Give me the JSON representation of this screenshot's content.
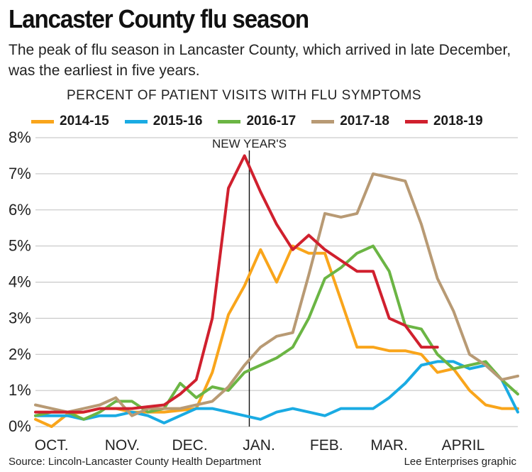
{
  "title": "Lancaster County flu season",
  "subtitle": "The peak of flu season in Lancaster County, which arrived in late December, was the earliest in five years.",
  "source": "Source: Lincoln-Lancaster County Health Department",
  "credit": "Lee Enterprises graphic",
  "chart_data": {
    "type": "line",
    "ylabel": "PERCENT OF PATIENT VISITS WITH FLU SYMPTOMS",
    "ylim": [
      0,
      8
    ],
    "yticks": [
      {
        "value": 0,
        "label": "0%"
      },
      {
        "value": 1,
        "label": "1%"
      },
      {
        "value": 2,
        "label": "2%"
      },
      {
        "value": 3,
        "label": "3%"
      },
      {
        "value": 4,
        "label": "4%"
      },
      {
        "value": 5,
        "label": "5%"
      },
      {
        "value": 6,
        "label": "6%"
      },
      {
        "value": 7,
        "label": "7%"
      },
      {
        "value": 8,
        "label": "8%"
      }
    ],
    "xlim": [
      0,
      30
    ],
    "xticks": [
      {
        "value": 1,
        "label": "OCT."
      },
      {
        "value": 5.4,
        "label": "NOV."
      },
      {
        "value": 9.6,
        "label": "DEC."
      },
      {
        "value": 13.9,
        "label": "JAN."
      },
      {
        "value": 18.1,
        "label": "FEB."
      },
      {
        "value": 22,
        "label": "MAR."
      },
      {
        "value": 26.6,
        "label": "APRIL"
      }
    ],
    "grid": true,
    "legend_position": "top",
    "annotation": {
      "label": "NEW YEAR'S",
      "x": 13.3
    },
    "series": [
      {
        "name": "2014-15",
        "color": "#f9a51b",
        "x": [
          0,
          1,
          2,
          3,
          4,
          5,
          6,
          7,
          8,
          9,
          10,
          11,
          12,
          13,
          14,
          15,
          16,
          17,
          18,
          19,
          20,
          21,
          22,
          23,
          24,
          25,
          26,
          27,
          28,
          29,
          30
        ],
        "y": [
          0.2,
          0,
          0.35,
          0.4,
          0.5,
          0.5,
          0.4,
          0.4,
          0.4,
          0.45,
          0.5,
          1.5,
          3.1,
          3.9,
          4.9,
          4,
          5,
          4.8,
          4.8,
          3.5,
          2.2,
          2.2,
          2.1,
          2.1,
          2,
          1.5,
          1.6,
          1,
          0.6,
          0.5,
          0.5
        ]
      },
      {
        "name": "2015-16",
        "color": "#1aabe3",
        "x": [
          0,
          1,
          2,
          3,
          4,
          5,
          6,
          7,
          8,
          9,
          10,
          11,
          12,
          13,
          14,
          15,
          16,
          17,
          18,
          19,
          20,
          21,
          22,
          23,
          24,
          25,
          26,
          27,
          28,
          29,
          30
        ],
        "y": [
          0.3,
          0.3,
          0.3,
          0.2,
          0.3,
          0.3,
          0.4,
          0.3,
          0.1,
          0.3,
          0.5,
          0.5,
          0.4,
          0.3,
          0.2,
          0.4,
          0.5,
          0.4,
          0.3,
          0.5,
          0.5,
          0.5,
          0.8,
          1.2,
          1.7,
          1.8,
          1.8,
          1.6,
          1.7,
          1.3,
          0.4
        ]
      },
      {
        "name": "2016-17",
        "color": "#6bb544",
        "x": [
          0,
          1,
          2,
          3,
          4,
          5,
          6,
          7,
          8,
          9,
          10,
          11,
          12,
          13,
          14,
          15,
          16,
          17,
          18,
          19,
          20,
          21,
          22,
          23,
          24,
          25,
          26,
          27,
          28,
          29,
          30
        ],
        "y": [
          0.3,
          0.4,
          0.4,
          0.2,
          0.4,
          0.7,
          0.7,
          0.4,
          0.5,
          1.2,
          0.8,
          1.1,
          1,
          1.5,
          1.7,
          1.9,
          2.2,
          3,
          4.1,
          4.4,
          4.8,
          5,
          4.3,
          2.8,
          2.7,
          2,
          1.6,
          1.7,
          1.8,
          1.3,
          0.9
        ]
      },
      {
        "name": "2017-18",
        "color": "#b89a74",
        "x": [
          0,
          1,
          2,
          3,
          4,
          5,
          6,
          7,
          8,
          9,
          10,
          11,
          12,
          13,
          14,
          15,
          16,
          17,
          18,
          19,
          20,
          21,
          22,
          23,
          24,
          25,
          26,
          27,
          28,
          29,
          30
        ],
        "y": [
          0.6,
          0.5,
          0.4,
          0.5,
          0.6,
          0.8,
          0.3,
          0.5,
          0.5,
          0.5,
          0.6,
          0.7,
          1.1,
          1.7,
          2.2,
          2.5,
          2.6,
          4.2,
          5.9,
          5.8,
          5.9,
          7,
          6.9,
          6.8,
          5.6,
          4.1,
          3.2,
          2,
          1.7,
          1.3,
          1.4
        ]
      },
      {
        "name": "2018-19",
        "color": "#d0202e",
        "x": [
          0,
          1,
          2,
          3,
          4,
          5,
          6,
          7,
          8,
          9,
          10,
          11,
          12,
          13,
          14,
          15,
          16,
          17,
          18,
          19,
          20,
          21,
          22,
          23,
          24,
          25
        ],
        "y": [
          0.4,
          0.4,
          0.4,
          0.4,
          0.5,
          0.5,
          0.5,
          0.55,
          0.6,
          0.9,
          1.3,
          3,
          6.6,
          7.5,
          6.5,
          5.6,
          4.9,
          5.3,
          4.9,
          4.6,
          4.3,
          4.3,
          3,
          2.8,
          2.2,
          2.2
        ]
      }
    ]
  }
}
